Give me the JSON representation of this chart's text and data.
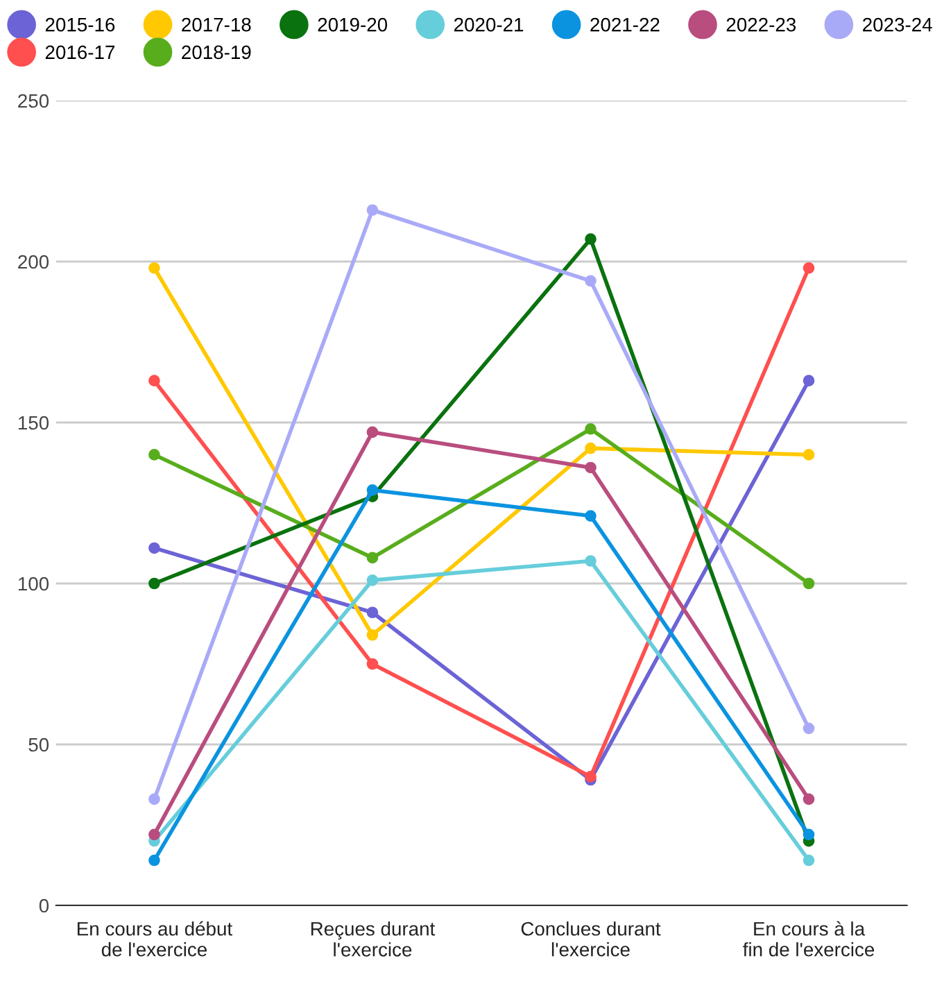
{
  "chart_data": {
    "type": "line",
    "categories": [
      "En cours au début de l'exercice",
      "Reçues durant l'exercice",
      "Conclues durant l'exercice",
      "En cours à la fin de l'exercice"
    ],
    "series": [
      {
        "name": "2015-16",
        "color": "#6c63d6",
        "values": [
          111,
          91,
          39,
          163
        ]
      },
      {
        "name": "2016-17",
        "color": "#ff4f4f",
        "values": [
          163,
          75,
          40,
          198
        ]
      },
      {
        "name": "2017-18",
        "color": "#ffc800",
        "values": [
          198,
          84,
          142,
          140
        ]
      },
      {
        "name": "2018-19",
        "color": "#58ad1c",
        "values": [
          140,
          108,
          148,
          100
        ]
      },
      {
        "name": "2019-20",
        "color": "#0a720e",
        "values": [
          100,
          127,
          207,
          20
        ]
      },
      {
        "name": "2020-21",
        "color": "#66cddb",
        "values": [
          20,
          101,
          107,
          14
        ]
      },
      {
        "name": "2021-22",
        "color": "#0b93e0",
        "values": [
          14,
          129,
          121,
          22
        ]
      },
      {
        "name": "2022-23",
        "color": "#b94d7e",
        "values": [
          22,
          147,
          136,
          33
        ]
      },
      {
        "name": "2023-24",
        "color": "#a9aaf7",
        "values": [
          33,
          216,
          194,
          55
        ]
      }
    ],
    "ylim": [
      0,
      250
    ],
    "yticks": [
      0,
      50,
      100,
      150,
      200,
      250
    ],
    "grid": "y",
    "legend": "top",
    "marker": "circle",
    "line_style": "solid"
  }
}
